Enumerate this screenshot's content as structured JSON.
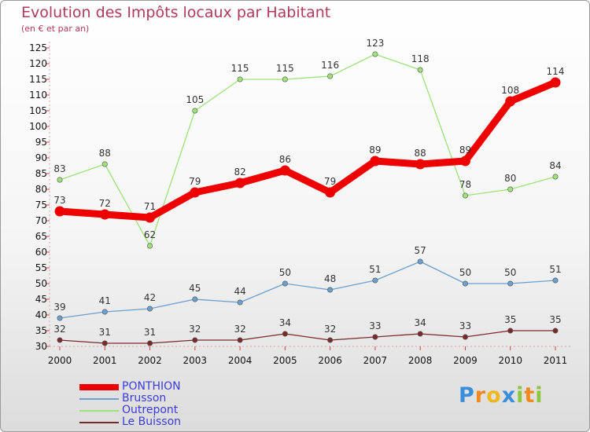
{
  "header": {
    "title": "Evolution des Impôts locaux par Habitant",
    "subtitle": "(en € et par an)"
  },
  "colors": {
    "PONTHION": "#ee0000",
    "Brusson": "#6a9fcf",
    "Outrepont": "#9ee27a",
    "Le Buisson": "#7a2a2a",
    "legend_text": "#3b3bdc",
    "title": "#b03a5b"
  },
  "logo": {
    "letters": [
      "P",
      "r",
      "o",
      "x",
      "i",
      "t",
      "i"
    ],
    "colors": [
      "#3a8fd8",
      "#f08a1c",
      "#f0b81c",
      "#3a8fd8",
      "#8cc63f",
      "#f08a1c",
      "#8cc63f"
    ]
  },
  "chart_data": {
    "type": "line",
    "title": "Evolution des Impôts locaux par Habitant",
    "subtitle": "(en € et par an)",
    "xlabel": "",
    "ylabel": "(en € et par an)",
    "x": [
      "2000",
      "2001",
      "2002",
      "2003",
      "2004",
      "2005",
      "2006",
      "2007",
      "2008",
      "2009",
      "2010",
      "2011"
    ],
    "ylim": [
      30,
      125
    ],
    "yticks": [
      30,
      35,
      40,
      45,
      50,
      55,
      60,
      65,
      70,
      75,
      80,
      85,
      90,
      95,
      100,
      105,
      110,
      115,
      120,
      125
    ],
    "grid": false,
    "legend_position": "bottom-left",
    "series": [
      {
        "name": "PONTHION",
        "values": [
          73,
          72,
          71,
          79,
          82,
          86,
          79,
          89,
          88,
          89,
          108,
          114
        ]
      },
      {
        "name": "Brusson",
        "values": [
          39,
          41,
          42,
          45,
          44,
          50,
          48,
          51,
          57,
          50,
          50,
          51
        ]
      },
      {
        "name": "Outrepont",
        "values": [
          83,
          88,
          62,
          105,
          115,
          115,
          116,
          123,
          118,
          78,
          80,
          84
        ]
      },
      {
        "name": "Le Buisson",
        "values": [
          32,
          31,
          31,
          32,
          32,
          34,
          32,
          33,
          34,
          33,
          35,
          35
        ]
      }
    ]
  }
}
